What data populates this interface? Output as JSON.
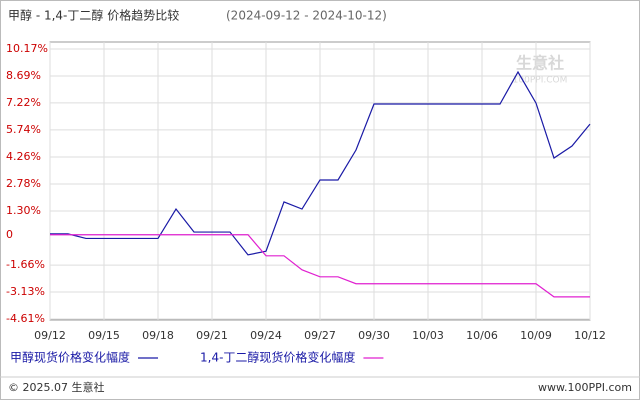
{
  "chart_data": {
    "type": "line",
    "title": "甲醇 - 1,4-丁二醇 价格趋势比较",
    "subtitle": "(2024-09-12 - 2024-10-12)",
    "categories": [
      "09/12",
      null,
      null,
      "09/15",
      null,
      null,
      "09/18",
      null,
      null,
      "09/21",
      null,
      null,
      "09/24",
      null,
      null,
      "09/27",
      null,
      null,
      "09/30",
      null,
      null,
      "10/03",
      null,
      null,
      "10/06",
      null,
      null,
      "10/09",
      null,
      null,
      "10/12"
    ],
    "series": [
      {
        "name": "甲醇现货价格变化幅度",
        "color": "#1a1aa6",
        "values": [
          0.05,
          0.05,
          -0.2,
          -0.2,
          -0.2,
          -0.2,
          -0.2,
          1.41,
          0.15,
          0.15,
          0.15,
          -1.1,
          -0.9,
          1.8,
          1.41,
          3.0,
          3.0,
          4.64,
          7.16,
          7.16,
          7.16,
          7.16,
          7.16,
          7.16,
          7.16,
          7.16,
          8.91,
          7.21,
          4.2,
          4.86,
          6.06
        ]
      },
      {
        "name": "1,4-丁二醇现货价格变化幅度",
        "color": "#e020d0",
        "values": [
          0,
          0,
          0,
          0,
          0,
          0,
          0,
          0,
          0,
          0,
          0,
          0,
          -1.15,
          -1.15,
          -1.92,
          -2.3,
          -2.3,
          -2.68,
          -2.68,
          -2.68,
          -2.68,
          -2.68,
          -2.68,
          -2.68,
          -2.68,
          -2.68,
          -2.68,
          -2.68,
          -3.4,
          -3.4,
          -3.4
        ]
      }
    ],
    "ylim": [
      -4.61,
      10.17
    ],
    "yticks": [
      {
        "value": 10.17,
        "label": "10.17%"
      },
      {
        "value": 8.69,
        "label": "8.69%"
      },
      {
        "value": 7.22,
        "label": "7.22%"
      },
      {
        "value": 5.74,
        "label": "5.74%"
      },
      {
        "value": 4.26,
        "label": "4.26%"
      },
      {
        "value": 2.78,
        "label": "2.78%"
      },
      {
        "value": 1.3,
        "label": "1.30%"
      },
      0,
      {
        "value": -1.66,
        "label": "-1.66%"
      },
      {
        "value": -3.13,
        "label": "-3.13%"
      },
      {
        "value": -4.61,
        "label": "-4.61%"
      }
    ],
    "grid": true,
    "watermark": [
      "生意社",
      "100PPI.COM"
    ],
    "footer": {
      "left": "© 2025.07 生意社",
      "right": "www.100PPI.com"
    }
  }
}
